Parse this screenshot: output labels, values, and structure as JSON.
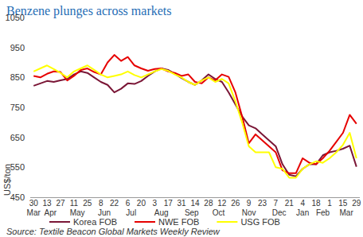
{
  "chart_data": {
    "type": "line",
    "title": "Benzene plunges across markets",
    "y_label": "US$/ton",
    "source": "Source: Textile Beacon Global Markets Weekly Review",
    "categories": [
      "30",
      null,
      "13",
      null,
      "27",
      null,
      "11",
      null,
      "25",
      null,
      "8",
      null,
      "22",
      null,
      "6",
      null,
      "20",
      null,
      "3",
      null,
      "17",
      null,
      "31",
      null,
      "14",
      null,
      "28",
      null,
      "12",
      null,
      "26",
      null,
      "9",
      null,
      "23",
      null,
      "7",
      null,
      "21",
      null,
      "4",
      null,
      "18",
      null,
      "1",
      null,
      "15",
      null,
      "29"
    ],
    "months": [
      "Mar",
      "Apr",
      "Apr",
      "Apr",
      "Apr",
      "May",
      "May",
      "May",
      "May",
      "Jun",
      "Jun",
      "Jun",
      "Jun",
      "Jul",
      "Jul",
      "Jul",
      "Jul",
      "Aug",
      "Aug",
      "Aug",
      "Aug",
      "Aug",
      "Sep",
      "Sep",
      "Sep",
      "Sep",
      "Oct",
      "Oct",
      "Oct",
      "Oct",
      "Nov",
      "Nov",
      "Nov",
      "Nov",
      "Nov",
      "Dec",
      "Dec",
      "Dec",
      "Dec",
      "Jan",
      "Jan",
      "Jan",
      "Feb",
      "Feb",
      "Feb",
      "Mar",
      "Mar",
      "Mar",
      "Mar"
    ],
    "series": [
      {
        "name": "Korea FOB",
        "color": "#7a1636",
        "values": [
          822,
          830,
          838,
          835,
          840,
          845,
          860,
          870,
          865,
          850,
          835,
          825,
          800,
          812,
          830,
          828,
          838,
          855,
          870,
          880,
          875,
          862,
          848,
          835,
          825,
          840,
          860,
          845,
          835,
          800,
          760,
          720,
          690,
          680,
          660,
          640,
          620,
          560,
          525,
          520,
          545,
          560,
          560,
          590,
          600,
          605,
          612,
          622,
          552
        ]
      },
      {
        "name": "NWE FOB",
        "color": "#e60000",
        "values": [
          855,
          850,
          862,
          870,
          868,
          840,
          855,
          875,
          880,
          868,
          860,
          900,
          925,
          905,
          918,
          890,
          880,
          872,
          878,
          880,
          870,
          865,
          855,
          860,
          835,
          830,
          850,
          840,
          860,
          852,
          800,
          720,
          630,
          660,
          640,
          620,
          600,
          540,
          530,
          530,
          580,
          565,
          560,
          580,
          605,
          635,
          665,
          725,
          695
        ]
      },
      {
        "name": "USG FOB",
        "color": "#ffff00",
        "values": [
          870,
          880,
          890,
          878,
          865,
          850,
          870,
          880,
          890,
          875,
          860,
          850,
          855,
          860,
          870,
          858,
          850,
          860,
          870,
          878,
          872,
          860,
          850,
          835,
          825,
          840,
          850,
          835,
          845,
          830,
          770,
          700,
          620,
          600,
          600,
          600,
          550,
          545,
          515,
          515,
          545,
          560,
          570,
          565,
          580,
          600,
          625,
          665,
          580
        ]
      }
    ],
    "ylim": [
      450,
      1050
    ],
    "yticks": [
      450,
      550,
      650,
      750,
      850,
      950,
      1050
    ],
    "grid": false,
    "legend": "bottom"
  }
}
